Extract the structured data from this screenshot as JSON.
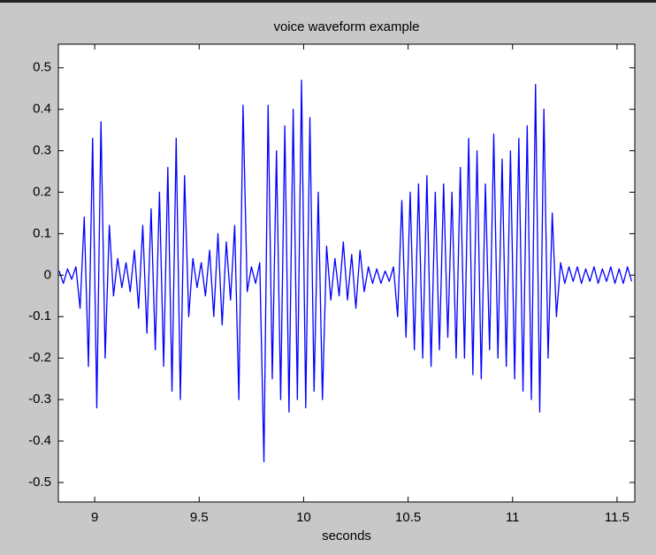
{
  "chart_data": {
    "type": "line",
    "title": "voice waveform example",
    "x_label": "seconds",
    "xlim": [
      8.826,
      11.585
    ],
    "ylim": [
      -0.547,
      0.557
    ],
    "xticks": [
      9,
      9.5,
      10,
      10.5,
      11,
      11.5
    ],
    "yticks": [
      -0.5,
      -0.4,
      -0.3,
      -0.2,
      -0.1,
      0,
      0.1,
      0.2,
      0.3,
      0.4,
      0.5
    ],
    "grid": false,
    "x": [
      8.83,
      8.85,
      8.87,
      8.89,
      8.91,
      8.93,
      8.95,
      8.97,
      8.99,
      9.01,
      9.03,
      9.05,
      9.07,
      9.09,
      9.11,
      9.13,
      9.15,
      9.17,
      9.19,
      9.21,
      9.23,
      9.25,
      9.27,
      9.29,
      9.31,
      9.33,
      9.35,
      9.37,
      9.39,
      9.41,
      9.43,
      9.45,
      9.47,
      9.49,
      9.51,
      9.53,
      9.55,
      9.57,
      9.59,
      9.61,
      9.63,
      9.65,
      9.67,
      9.69,
      9.71,
      9.73,
      9.75,
      9.77,
      9.79,
      9.81,
      9.83,
      9.85,
      9.87,
      9.89,
      9.91,
      9.93,
      9.95,
      9.97,
      9.99,
      10.01,
      10.03,
      10.05,
      10.07,
      10.09,
      10.11,
      10.13,
      10.15,
      10.17,
      10.19,
      10.21,
      10.23,
      10.25,
      10.27,
      10.29,
      10.31,
      10.33,
      10.35,
      10.37,
      10.39,
      10.41,
      10.43,
      10.45,
      10.47,
      10.49,
      10.51,
      10.53,
      10.55,
      10.57,
      10.59,
      10.61,
      10.63,
      10.65,
      10.67,
      10.69,
      10.71,
      10.73,
      10.75,
      10.77,
      10.79,
      10.81,
      10.83,
      10.85,
      10.87,
      10.89,
      10.91,
      10.93,
      10.95,
      10.97,
      10.99,
      11.01,
      11.03,
      11.05,
      11.07,
      11.09,
      11.11,
      11.13,
      11.15,
      11.17,
      11.19,
      11.21,
      11.23,
      11.25,
      11.27,
      11.29,
      11.31,
      11.33,
      11.35,
      11.37,
      11.39,
      11.41,
      11.43,
      11.45,
      11.47,
      11.49,
      11.51,
      11.53,
      11.55,
      11.57
    ],
    "series": [
      {
        "color": "#0000ff",
        "values": [
          0.01,
          -0.02,
          0.015,
          -0.01,
          0.02,
          -0.08,
          0.14,
          -0.22,
          0.33,
          -0.32,
          0.37,
          -0.2,
          0.12,
          -0.05,
          0.04,
          -0.03,
          0.03,
          -0.04,
          0.06,
          -0.08,
          0.12,
          -0.14,
          0.16,
          -0.18,
          0.2,
          -0.22,
          0.26,
          -0.28,
          0.33,
          -0.3,
          0.24,
          -0.1,
          0.04,
          -0.03,
          0.03,
          -0.05,
          0.06,
          -0.1,
          0.1,
          -0.12,
          0.08,
          -0.06,
          0.12,
          -0.3,
          0.41,
          -0.04,
          0.02,
          -0.02,
          0.03,
          -0.45,
          0.41,
          -0.25,
          0.3,
          -0.3,
          0.36,
          -0.33,
          0.4,
          -0.3,
          0.47,
          -0.32,
          0.38,
          -0.28,
          0.2,
          -0.3,
          0.07,
          -0.06,
          0.04,
          -0.05,
          0.08,
          -0.06,
          0.05,
          -0.08,
          0.06,
          -0.04,
          0.02,
          -0.02,
          0.015,
          -0.02,
          0.01,
          -0.015,
          0.02,
          -0.1,
          0.18,
          -0.15,
          0.2,
          -0.18,
          0.22,
          -0.2,
          0.24,
          -0.22,
          0.2,
          -0.18,
          0.22,
          -0.15,
          0.2,
          -0.2,
          0.26,
          -0.2,
          0.33,
          -0.24,
          0.3,
          -0.25,
          0.22,
          -0.18,
          0.34,
          -0.2,
          0.28,
          -0.22,
          0.3,
          -0.25,
          0.33,
          -0.28,
          0.36,
          -0.3,
          0.46,
          -0.33,
          0.4,
          -0.2,
          0.15,
          -0.1,
          0.03,
          -0.02,
          0.02,
          -0.015,
          0.02,
          -0.02,
          0.015,
          -0.015,
          0.02,
          -0.02,
          0.015,
          -0.015,
          0.02,
          -0.02,
          0.015,
          -0.02,
          0.02,
          -0.015
        ]
      }
    ]
  }
}
